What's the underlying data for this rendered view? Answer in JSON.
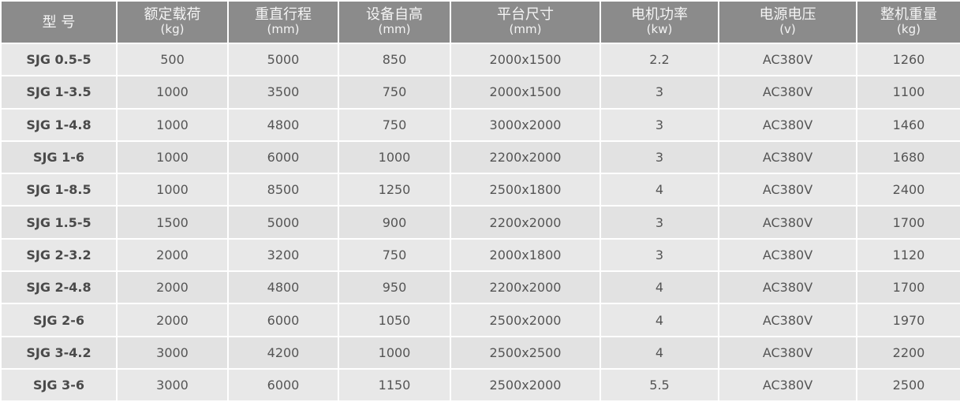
{
  "table": {
    "headers": [
      {
        "title": "型 号",
        "unit": ""
      },
      {
        "title": "额定载荷",
        "unit": "(kg)"
      },
      {
        "title": "重直行程",
        "unit": "(mm)"
      },
      {
        "title": "设备自高",
        "unit": "(mm)"
      },
      {
        "title": "平台尺寸",
        "unit": "(mm)"
      },
      {
        "title": "电机功率",
        "unit": "(kw)"
      },
      {
        "title": "电源电压",
        "unit": "(v)"
      },
      {
        "title": "整机重量",
        "unit": "(kg)"
      }
    ],
    "rows": [
      [
        "SJG 0.5-5",
        "500",
        "5000",
        "850",
        "2000x1500",
        "2.2",
        "AC380V",
        "1260"
      ],
      [
        "SJG 1-3.5",
        "1000",
        "3500",
        "750",
        "2000x1500",
        "3",
        "AC380V",
        "1100"
      ],
      [
        "SJG 1-4.8",
        "1000",
        "4800",
        "750",
        "3000x2000",
        "3",
        "AC380V",
        "1460"
      ],
      [
        "SJG 1-6",
        "1000",
        "6000",
        "1000",
        "2200x2000",
        "3",
        "AC380V",
        "1680"
      ],
      [
        "SJG 1-8.5",
        "1000",
        "8500",
        "1250",
        "2500x1800",
        "4",
        "AC380V",
        "2400"
      ],
      [
        "SJG 1.5-5",
        "1500",
        "5000",
        "900",
        "2200x2000",
        "3",
        "AC380V",
        "1700"
      ],
      [
        "SJG 2-3.2",
        "2000",
        "3200",
        "750",
        "2000x1800",
        "3",
        "AC380V",
        "1120"
      ],
      [
        "SJG 2-4.8",
        "2000",
        "4800",
        "950",
        "2200x2000",
        "4",
        "AC380V",
        "1700"
      ],
      [
        "SJG 2-6",
        "2000",
        "6000",
        "1050",
        "2500x2000",
        "4",
        "AC380V",
        "1970"
      ],
      [
        "SJG 3-4.2",
        "3000",
        "4200",
        "1000",
        "2500x2500",
        "4",
        "AC380V",
        "2200"
      ],
      [
        "SJG 3-6",
        "3000",
        "6000",
        "1150",
        "2500x2000",
        "5.5",
        "AC380V",
        "2500"
      ]
    ]
  },
  "colors": {
    "header_bg": "#8b8b8b",
    "row_bg": "#e8e8e8",
    "border": "#ffffff"
  }
}
